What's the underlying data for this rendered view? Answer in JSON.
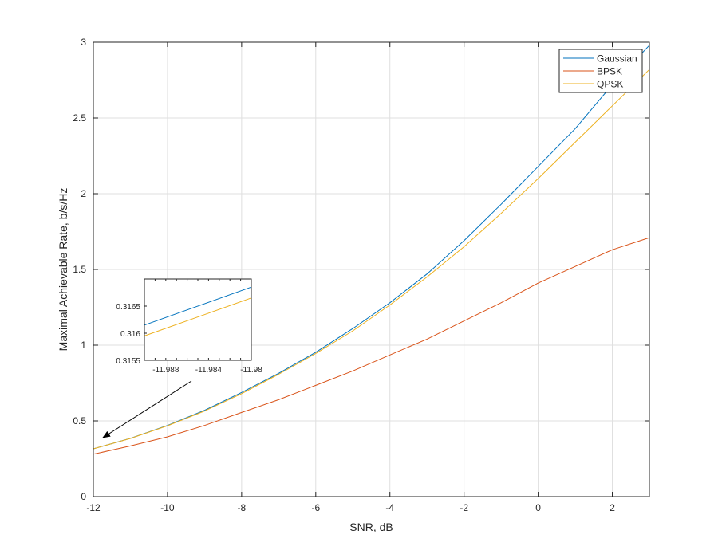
{
  "chart_data": {
    "type": "line",
    "title": "",
    "xlabel": "SNR, dB",
    "ylabel": "Maximal Achievable Rate, b/s/Hz",
    "xlim": [
      -12,
      3
    ],
    "ylim": [
      0,
      3
    ],
    "xticks": [
      -12,
      -10,
      -8,
      -6,
      -4,
      -2,
      0,
      2
    ],
    "xtick_labels": [
      "-12",
      "-10",
      "-8",
      "-6",
      "-4",
      "-2",
      "0",
      "2"
    ],
    "yticks": [
      0,
      0.5,
      1,
      1.5,
      2,
      2.5,
      3
    ],
    "ytick_labels": [
      "0",
      "0.5",
      "1",
      "1.5",
      "2",
      "2.5",
      "3"
    ],
    "grid": true,
    "legend_position": "top-right",
    "x": [
      -12,
      -11,
      -10,
      -9,
      -8,
      -7,
      -6,
      -5,
      -4,
      -3,
      -2,
      -1,
      0,
      1,
      2,
      3
    ],
    "series": [
      {
        "name": "Gaussian",
        "color": "#0072BD",
        "values": [
          0.316,
          0.385,
          0.47,
          0.57,
          0.688,
          0.814,
          0.953,
          1.11,
          1.28,
          1.47,
          1.69,
          1.93,
          2.18,
          2.43,
          2.72,
          2.98
        ]
      },
      {
        "name": "BPSK",
        "color": "#D95319",
        "values": [
          0.28,
          0.335,
          0.395,
          0.47,
          0.556,
          0.64,
          0.735,
          0.83,
          0.935,
          1.04,
          1.16,
          1.28,
          1.41,
          1.52,
          1.63,
          1.71
        ]
      },
      {
        "name": "QPSK",
        "color": "#EDB120",
        "values": [
          0.3158,
          0.384,
          0.468,
          0.565,
          0.68,
          0.808,
          0.945,
          1.095,
          1.265,
          1.45,
          1.65,
          1.87,
          2.1,
          2.34,
          2.58,
          2.82
        ]
      }
    ],
    "inset": {
      "xlim": [
        -11.99,
        -11.98
      ],
      "ylim": [
        0.3155,
        0.317
      ],
      "xticks": [
        -11.988,
        -11.984,
        -11.98
      ],
      "xtick_labels": [
        "-11.988",
        "-11.984",
        "-11.98"
      ],
      "yticks": [
        0.3155,
        0.316,
        0.3165
      ],
      "ytick_labels": [
        "0.3155",
        "0.316",
        "0.3165"
      ],
      "series": [
        {
          "name": "Gaussian",
          "color": "#0072BD",
          "x": [
            -11.99,
            -11.98
          ],
          "values": [
            0.31615,
            0.31685
          ]
        },
        {
          "name": "QPSK",
          "color": "#EDB120",
          "x": [
            -11.99,
            -11.98
          ],
          "values": [
            0.31595,
            0.31665
          ]
        }
      ]
    }
  }
}
